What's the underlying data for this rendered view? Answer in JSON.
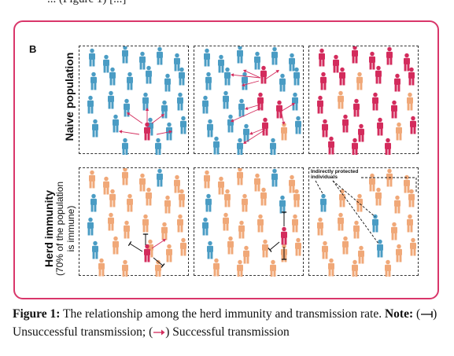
{
  "top_text": "... (Figure 1) [...]",
  "figure": {
    "panel_letter": "B",
    "rows": [
      {
        "label": "Naive population"
      },
      {
        "label": "Herd immunity",
        "sublabel_1": "(70% of the population",
        "sublabel_2": "is immune)"
      }
    ],
    "annotation": "Indirectly protected individuals",
    "colors": {
      "susceptible": "#4a9cc4",
      "infected": "#d32b5c",
      "immune": "#f0a878",
      "frame": "#d9366a"
    },
    "icons": [
      "person-icon"
    ]
  },
  "caption": {
    "label": "Figure 1:",
    "text": " The relationship among the herd immunity and transmission rate. ",
    "note_label": "Note:",
    "legend_open": " (",
    "unsuccessful": ") Unsuccessful transmission; (",
    "successful": ") Successful transmission"
  }
}
